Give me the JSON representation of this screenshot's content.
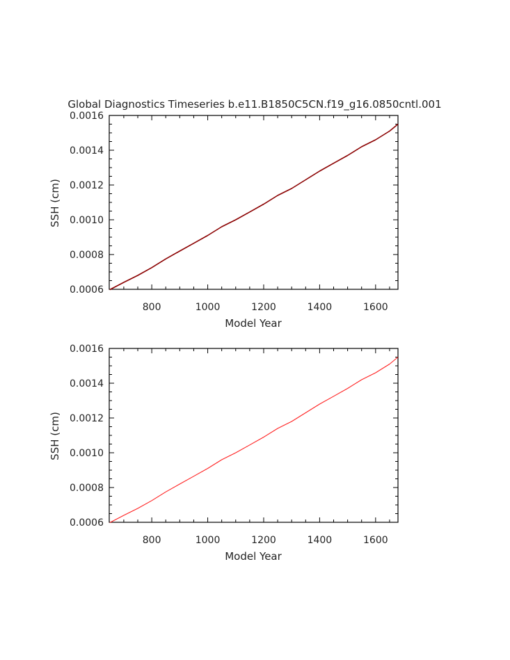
{
  "title": "Global Diagnostics Timeseries b.e11.B1850C5CN.f19_g16.0850cntl.001",
  "chart_data": [
    {
      "type": "line",
      "xlabel": "Model Year",
      "ylabel": "SSH (cm)",
      "xlim": [
        648,
        1680
      ],
      "ylim": [
        0.0006,
        0.0016
      ],
      "xticks": [
        800,
        1000,
        1200,
        1400,
        1600
      ],
      "yticks": [
        "0.0006",
        "0.0008",
        "0.0010",
        "0.0012",
        "0.0014",
        "0.0016"
      ],
      "grid": false,
      "series": [
        {
          "color": "#8b0000",
          "x": [
            650,
            700,
            750,
            800,
            850,
            900,
            950,
            1000,
            1050,
            1100,
            1150,
            1200,
            1250,
            1300,
            1350,
            1400,
            1450,
            1500,
            1550,
            1600,
            1650,
            1680
          ],
          "y": [
            0.000598,
            0.00064,
            0.00068,
            0.000725,
            0.000775,
            0.00082,
            0.000865,
            0.00091,
            0.00096,
            0.001,
            0.001045,
            0.00109,
            0.00114,
            0.00118,
            0.00123,
            0.00128,
            0.001325,
            0.00137,
            0.00142,
            0.00146,
            0.00151,
            0.00155
          ]
        }
      ]
    },
    {
      "type": "line",
      "xlabel": "Model Year",
      "ylabel": "SSH (cm)",
      "xlim": [
        648,
        1680
      ],
      "ylim": [
        0.0006,
        0.0016
      ],
      "xticks": [
        800,
        1000,
        1200,
        1400,
        1600
      ],
      "yticks": [
        "0.0006",
        "0.0008",
        "0.0010",
        "0.0012",
        "0.0014",
        "0.0016"
      ],
      "grid": false,
      "series": [
        {
          "color": "#ff2020",
          "x": [
            650,
            700,
            750,
            800,
            850,
            900,
            950,
            1000,
            1050,
            1100,
            1150,
            1200,
            1250,
            1300,
            1350,
            1400,
            1450,
            1500,
            1550,
            1600,
            1650,
            1680
          ],
          "y": [
            0.000598,
            0.00064,
            0.00068,
            0.000725,
            0.000775,
            0.00082,
            0.000865,
            0.00091,
            0.00096,
            0.001,
            0.001045,
            0.00109,
            0.00114,
            0.00118,
            0.00123,
            0.00128,
            0.001325,
            0.00137,
            0.00142,
            0.00146,
            0.00151,
            0.00155
          ]
        }
      ]
    }
  ]
}
